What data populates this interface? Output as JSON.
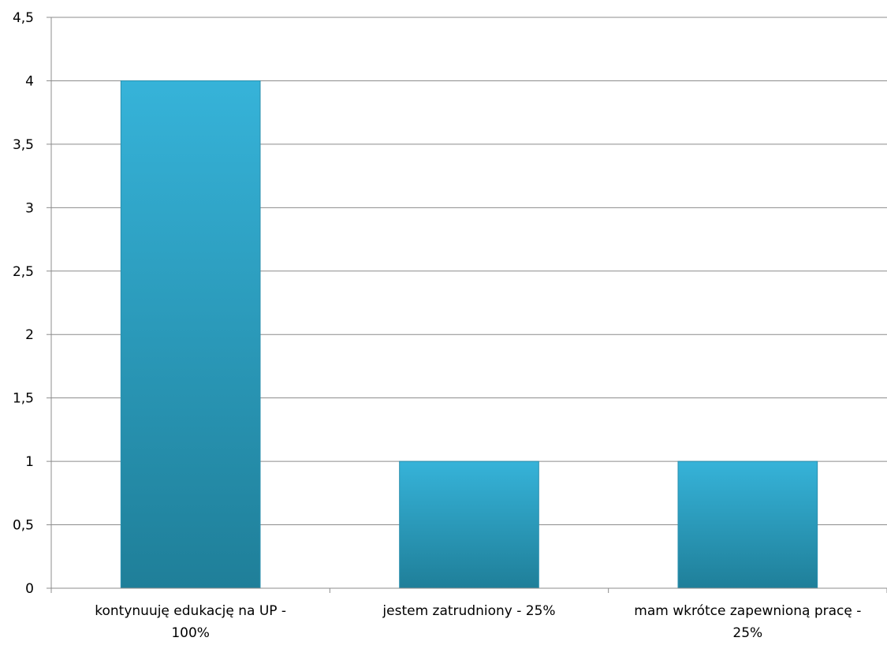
{
  "chart_data": {
    "type": "bar",
    "categories": [
      [
        "kontynuuję edukację na UP -",
        "100%"
      ],
      [
        "jestem zatrudniony - 25%"
      ],
      [
        "mam wkrótce zapewnioną pracę -",
        "25%"
      ]
    ],
    "values": [
      4,
      1,
      1
    ],
    "ylim": [
      0,
      4.5
    ],
    "yticks": [
      "0",
      "0,5",
      "1",
      "1,5",
      "2",
      "2,5",
      "3",
      "3,5",
      "4",
      "4,5"
    ],
    "grid": true,
    "legend": "none",
    "colors": {
      "bar_top": "#36b3d9",
      "bar_bottom": "#1f7f99",
      "bar_edge": "#2a8fae",
      "grid": "#8c8c8c",
      "axis": "#8c8c8c"
    }
  }
}
